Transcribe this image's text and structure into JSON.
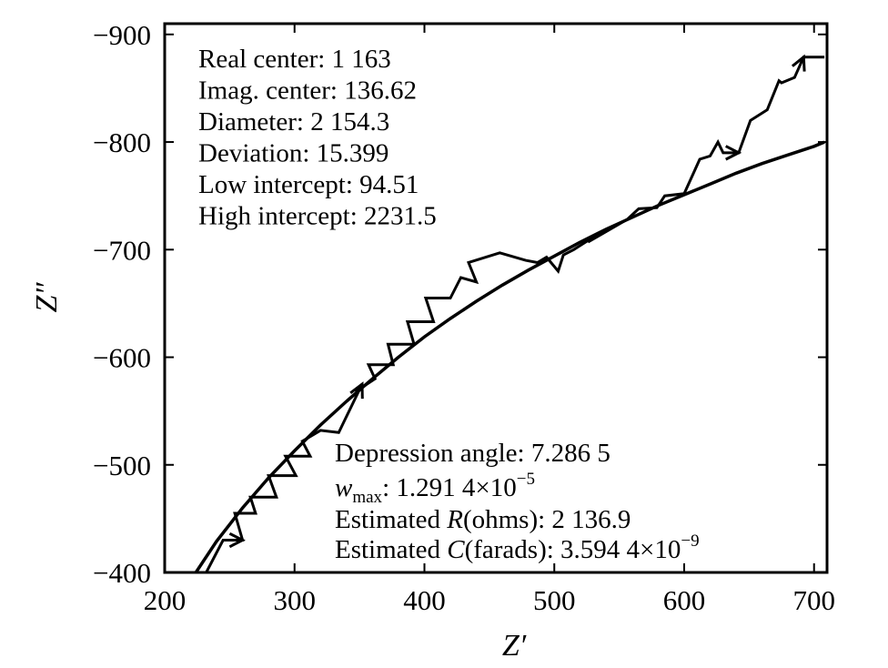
{
  "chart_data": {
    "type": "line",
    "title": "",
    "xlabel": "Z′",
    "ylabel": "Z″",
    "xlim": [
      200,
      710
    ],
    "ylim": [
      -400,
      -910
    ],
    "x_ticks": [
      "200",
      "300",
      "400",
      "500",
      "600",
      "700"
    ],
    "y_ticks": [
      "−400",
      "−500",
      "−600",
      "−700",
      "−800",
      "−900"
    ],
    "series": [
      {
        "kind": "fit",
        "x": [
          224,
          240,
          260,
          280,
          300,
          320,
          340,
          360,
          380,
          400,
          420,
          440,
          460,
          480,
          500,
          520,
          540,
          560,
          580,
          600,
          620,
          640,
          660,
          680,
          700,
          708
        ],
        "y": [
          -400,
          -429,
          -460,
          -488,
          -513,
          -537,
          -559,
          -580,
          -600,
          -619,
          -636,
          -652,
          -667,
          -681,
          -694,
          -707,
          -719,
          -730,
          -741,
          -751,
          -761,
          -771,
          -780,
          -788,
          -796,
          -800
        ]
      },
      {
        "kind": "measured",
        "x": [
          217,
          232,
          245,
          260,
          254,
          270,
          266,
          286,
          280,
          301,
          293,
          312,
          306,
          320,
          334,
          352,
          347,
          362,
          357,
          376,
          372,
          392,
          387,
          407,
          401,
          420,
          428,
          440,
          434,
          458,
          478,
          487,
          494,
          503,
          507,
          515,
          532,
          526,
          556,
          565,
          579,
          585,
          600,
          612,
          620,
          626,
          630,
          642,
          651,
          664,
          673,
          675,
          685,
          692,
          708
        ],
        "y": [
          -400,
          -400,
          -430,
          -430,
          -455,
          -455,
          -470,
          -470,
          -490,
          -490,
          -508,
          -508,
          -522,
          -532,
          -530,
          -575,
          -568,
          -580,
          -593,
          -593,
          -612,
          -612,
          -633,
          -633,
          -655,
          -655,
          -674,
          -670,
          -688,
          -697,
          -690,
          -688,
          -693,
          -680,
          -695,
          -700,
          -713,
          -707,
          -728,
          -738,
          -739,
          -750,
          -752,
          -784,
          -787,
          -800,
          -790,
          -790,
          -820,
          -830,
          -857,
          -855,
          -860,
          -879,
          -879
        ]
      }
    ],
    "annotations_top": [
      "Real center: 1 163",
      "Imag. center: 136.62",
      "Diameter: 2 154.3",
      "Deviation: 15.399",
      "Low intercept: 94.51",
      "High intercept: 2231.5"
    ],
    "annotations_bottom": {
      "depression": "Depression angle: 7.286 5",
      "wmax_symbol": "w",
      "wmax_sub": "max",
      "wmax_value": ": 1.291 4×10",
      "wmax_exp": "−5",
      "r_pre": "Estimated ",
      "r_sym": "R",
      "r_post": "(ohms): 2 136.9",
      "c_pre": "Estimated ",
      "c_sym": "C",
      "c_post": "(farads): 3.594 4×10",
      "c_exp": "−9"
    },
    "grid": false,
    "legend": "none"
  }
}
